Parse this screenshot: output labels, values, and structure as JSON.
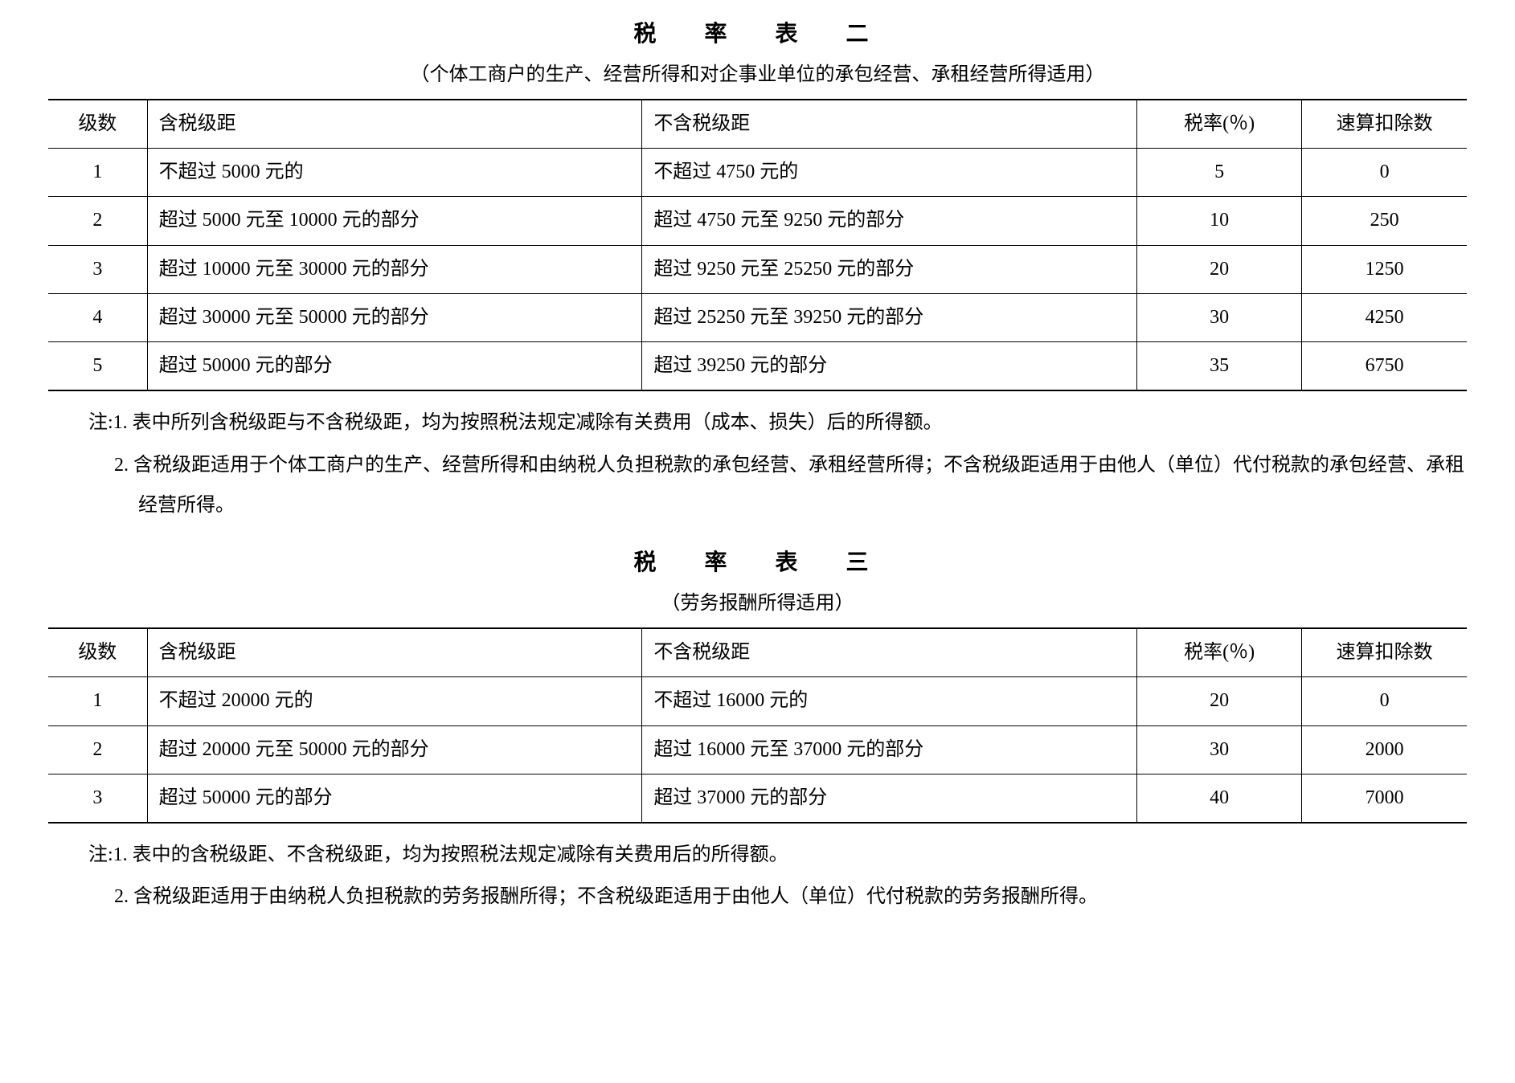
{
  "tables": [
    {
      "title": "税　率　表　二",
      "subtitle": "（个体工商户的生产、经营所得和对企事业单位的承包经营、承租经营所得适用）",
      "columns": [
        "级数",
        "含税级距",
        "不含税级距",
        "税率(％)",
        "速算扣除数"
      ],
      "rows": [
        [
          "1",
          "不超过 5000 元的",
          "不超过 4750 元的",
          "5",
          "0"
        ],
        [
          "2",
          "超过 5000 元至 10000 元的部分",
          "超过 4750 元至 9250 元的部分",
          "10",
          "250"
        ],
        [
          "3",
          "超过 10000 元至 30000 元的部分",
          "超过 9250 元至 25250 元的部分",
          "20",
          "1250"
        ],
        [
          "4",
          "超过 30000 元至 50000 元的部分",
          "超过 25250 元至 39250 元的部分",
          "30",
          "4250"
        ],
        [
          "5",
          "超过 50000 元的部分",
          "超过 39250 元的部分",
          "35",
          "6750"
        ]
      ],
      "notes": [
        "注:1. 表中所列含税级距与不含税级距，均为按照税法规定减除有关费用（成本、损失）后的所得额。",
        "2. 含税级距适用于个体工商户的生产、经营所得和由纳税人负担税款的承包经营、承租经营所得；不含税级距适用于由他人（单位）代付税款的承包经营、承租经营所得。"
      ]
    },
    {
      "title": "税　率　表　三",
      "subtitle": "（劳务报酬所得适用）",
      "columns": [
        "级数",
        "含税级距",
        "不含税级距",
        "税率(％)",
        "速算扣除数"
      ],
      "rows": [
        [
          "1",
          "不超过 20000 元的",
          "不超过 16000 元的",
          "20",
          "0"
        ],
        [
          "2",
          "超过 20000 元至 50000 元的部分",
          "超过 16000 元至 37000 元的部分",
          "30",
          "2000"
        ],
        [
          "3",
          "超过 50000 元的部分",
          "超过 37000 元的部分",
          "40",
          "7000"
        ]
      ],
      "notes": [
        "注:1. 表中的含税级距、不含税级距，均为按照税法规定减除有关费用后的所得额。",
        "2. 含税级距适用于由纳税人负担税款的劳务报酬所得；不含税级距适用于由他人（单位）代付税款的劳务报酬所得。"
      ]
    }
  ],
  "style": {
    "font_family": "SimSun",
    "body_fontsize": 24,
    "title_fontsize": 28,
    "text_color": "#000000",
    "background_color": "#ffffff",
    "border_color": "#000000",
    "top_border_width": 2,
    "row_border_width": 1,
    "column_widths_pct": [
      6,
      30,
      30,
      10,
      10
    ]
  }
}
